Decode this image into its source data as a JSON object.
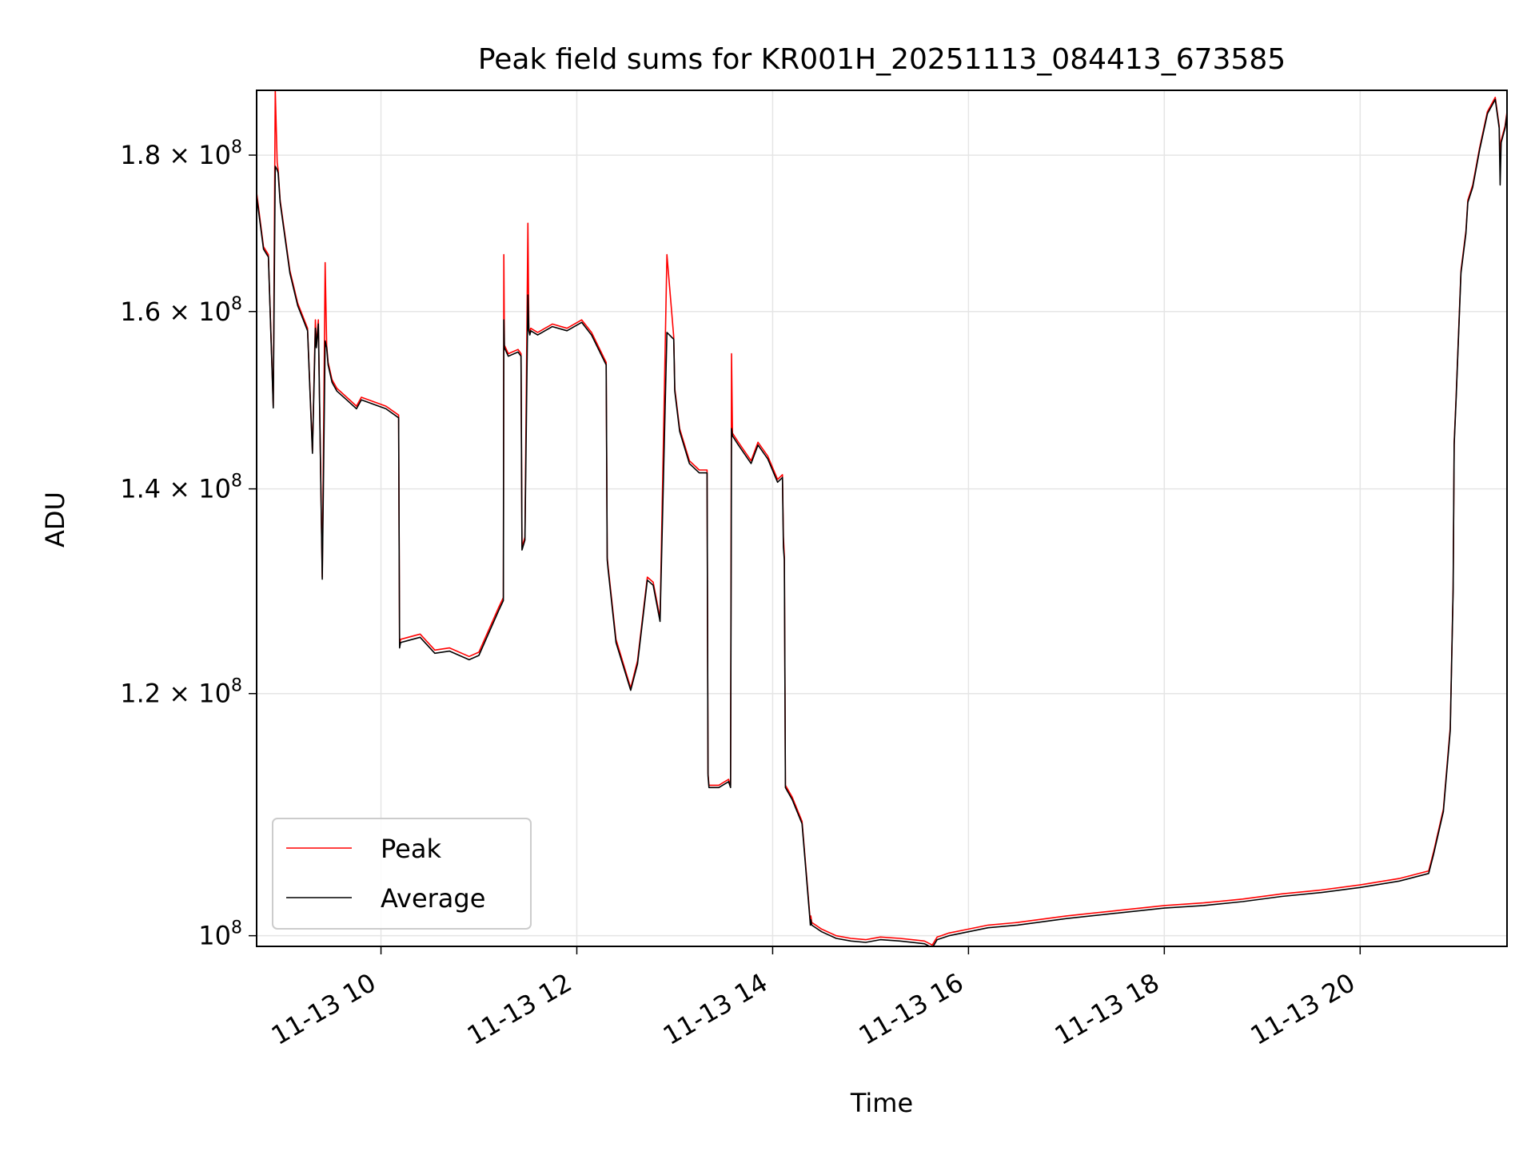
{
  "chart_data": {
    "type": "line",
    "title": "Peak field sums for KR001H_20251113_084413_673585",
    "xlabel": "Time",
    "ylabel": "ADU",
    "yscale": "log",
    "xlim": [
      8.73,
      21.5
    ],
    "ylim": [
      99200000,
      189000000
    ],
    "grid": true,
    "legend_position": "lower-left",
    "x_ticks": [
      {
        "value": 10,
        "label": "11-13 10"
      },
      {
        "value": 12,
        "label": "11-13 12"
      },
      {
        "value": 14,
        "label": "11-13 14"
      },
      {
        "value": 16,
        "label": "11-13 16"
      },
      {
        "value": 18,
        "label": "11-13 18"
      },
      {
        "value": 20,
        "label": "11-13 20"
      }
    ],
    "y_ticks": [
      {
        "value": 100000000,
        "mantissa": "",
        "base": "10",
        "exponent": "8"
      },
      {
        "value": 120000000,
        "mantissa": "1.2",
        "base": "10",
        "exponent": "8"
      },
      {
        "value": 140000000,
        "mantissa": "1.4",
        "base": "10",
        "exponent": "8"
      },
      {
        "value": 160000000,
        "mantissa": "1.6",
        "base": "10",
        "exponent": "8"
      },
      {
        "value": 180000000,
        "mantissa": "1.8",
        "base": "10",
        "exponent": "8"
      }
    ],
    "series": [
      {
        "name": "Peak",
        "color": "#ff0000",
        "x": [
          8.73,
          8.8,
          8.85,
          8.9,
          8.92,
          8.94,
          8.95,
          8.97,
          9.07,
          9.15,
          9.25,
          9.3,
          9.33,
          9.34,
          9.36,
          9.4,
          9.43,
          9.445,
          9.46,
          9.5,
          9.55,
          9.65,
          9.75,
          9.8,
          10.05,
          10.18,
          10.19,
          10.2,
          10.4,
          10.55,
          10.7,
          10.9,
          11.0,
          11.2,
          11.25,
          11.255,
          11.26,
          11.3,
          11.4,
          11.43,
          11.44,
          11.47,
          11.5,
          11.51,
          11.52,
          11.53,
          11.6,
          11.75,
          11.9,
          12.05,
          12.15,
          12.3,
          12.31,
          12.32,
          12.4,
          12.55,
          12.62,
          12.72,
          12.78,
          12.85,
          12.92,
          12.99,
          12.995,
          13.0,
          13.05,
          13.15,
          13.25,
          13.33,
          13.34,
          13.35,
          13.45,
          13.55,
          13.57,
          13.58,
          13.59,
          13.65,
          13.78,
          13.85,
          13.95,
          14.05,
          14.1,
          14.11,
          14.12,
          14.13,
          14.2,
          14.3,
          14.38,
          14.385,
          14.39,
          14.4,
          14.5,
          14.65,
          14.8,
          14.95,
          15.1,
          15.3,
          15.55,
          15.63,
          15.68,
          15.72,
          15.8,
          16.0,
          16.2,
          16.5,
          17.0,
          17.5,
          18.0,
          18.4,
          18.8,
          19.2,
          19.6,
          20.0,
          20.4,
          20.7,
          20.75,
          20.85,
          20.92,
          20.95,
          20.96,
          20.98,
          21.03,
          21.08,
          21.1,
          21.15,
          21.22,
          21.3,
          21.38,
          21.42,
          21.43,
          21.44,
          21.48,
          21.5
        ],
        "values": [
          175000000,
          168000000,
          167000000,
          149000000,
          189000000,
          179000000,
          178000000,
          174000000,
          165000000,
          161000000,
          158000000,
          144000000,
          159000000,
          156000000,
          159000000,
          131000000,
          166000000,
          156000000,
          154000000,
          152000000,
          151000000,
          150000000,
          149000000,
          150000000,
          149000000,
          148000000,
          124500000,
          125000000,
          125500000,
          124000000,
          124200000,
          123400000,
          123800000,
          128000000,
          129000000,
          167000000,
          156000000,
          155000000,
          155500000,
          155000000,
          134000000,
          135000000,
          171000000,
          158000000,
          157500000,
          158000000,
          157500000,
          158500000,
          158000000,
          159000000,
          157500000,
          154000000,
          133000000,
          132000000,
          125000000,
          120500000,
          123000000,
          131000000,
          130500000,
          127000000,
          167000000,
          157000000,
          154000000,
          151000000,
          146500000,
          143000000,
          142000000,
          142000000,
          113000000,
          112000000,
          112000000,
          112500000,
          112000000,
          155000000,
          146000000,
          145000000,
          143000000,
          145000000,
          143500000,
          141000000,
          141500000,
          135000000,
          133000000,
          112000000,
          111000000,
          109000000,
          101500000,
          101000000,
          101500000,
          101000000,
          100500000,
          100000000,
          99800000,
          99700000,
          99900000,
          99800000,
          99600000,
          99300000,
          99900000,
          100000000,
          100200000,
          100500000,
          100800000,
          101000000,
          101500000,
          101900000,
          102300000,
          102500000,
          102800000,
          103200000,
          103500000,
          103900000,
          104400000,
          105000000,
          106500000,
          110000000,
          117000000,
          130000000,
          145000000,
          150000000,
          165000000,
          170000000,
          174000000,
          176000000,
          181000000,
          186000000,
          188000000,
          184000000,
          180000000,
          182000000,
          184000000,
          186000000
        ]
      },
      {
        "name": "Average",
        "color": "#000000",
        "x": [
          8.73,
          8.8,
          8.85,
          8.9,
          8.92,
          8.94,
          8.95,
          8.97,
          9.07,
          9.15,
          9.25,
          9.3,
          9.33,
          9.34,
          9.36,
          9.4,
          9.43,
          9.445,
          9.46,
          9.5,
          9.55,
          9.65,
          9.75,
          9.8,
          10.05,
          10.18,
          10.19,
          10.2,
          10.4,
          10.55,
          10.7,
          10.9,
          11.0,
          11.2,
          11.25,
          11.255,
          11.26,
          11.3,
          11.4,
          11.43,
          11.44,
          11.47,
          11.5,
          11.51,
          11.52,
          11.53,
          11.6,
          11.75,
          11.9,
          12.05,
          12.15,
          12.3,
          12.31,
          12.32,
          12.4,
          12.55,
          12.62,
          12.72,
          12.78,
          12.85,
          12.92,
          12.99,
          12.995,
          13.0,
          13.05,
          13.15,
          13.25,
          13.33,
          13.34,
          13.35,
          13.45,
          13.55,
          13.57,
          13.58,
          13.59,
          13.65,
          13.78,
          13.85,
          13.95,
          14.05,
          14.1,
          14.11,
          14.12,
          14.13,
          14.2,
          14.3,
          14.38,
          14.385,
          14.39,
          14.4,
          14.5,
          14.65,
          14.8,
          14.95,
          15.1,
          15.3,
          15.55,
          15.63,
          15.68,
          15.72,
          15.8,
          16.0,
          16.2,
          16.5,
          17.0,
          17.5,
          18.0,
          18.4,
          18.8,
          19.2,
          19.6,
          20.0,
          20.4,
          20.7,
          20.75,
          20.85,
          20.92,
          20.95,
          20.96,
          20.98,
          21.03,
          21.08,
          21.1,
          21.15,
          21.22,
          21.3,
          21.38,
          21.42,
          21.43,
          21.44,
          21.48,
          21.5
        ],
        "values": [
          174500000,
          167700000,
          166700000,
          148800000,
          178500000,
          178000000,
          177600000,
          173700000,
          164700000,
          160700000,
          157700000,
          143800000,
          158000000,
          155700000,
          158500000,
          130800000,
          156500000,
          155700000,
          153700000,
          151700000,
          150700000,
          149700000,
          148700000,
          149700000,
          148700000,
          147700000,
          124200000,
          124700000,
          125200000,
          123700000,
          123900000,
          123100000,
          123500000,
          127700000,
          128700000,
          159000000,
          155700000,
          154700000,
          155200000,
          154700000,
          133700000,
          134700000,
          162000000,
          157700000,
          157200000,
          157700000,
          157200000,
          158200000,
          157700000,
          158700000,
          157200000,
          153700000,
          132700000,
          131700000,
          124700000,
          120300000,
          122700000,
          130700000,
          130200000,
          126700000,
          157500000,
          156700000,
          153700000,
          150700000,
          146200000,
          142700000,
          141700000,
          141700000,
          112800000,
          111800000,
          111800000,
          112300000,
          111800000,
          146500000,
          145700000,
          144700000,
          142700000,
          144700000,
          143200000,
          140700000,
          141200000,
          134000000,
          132700000,
          111800000,
          110800000,
          108800000,
          101300000,
          100800000,
          101200000,
          100800000,
          100300000,
          99800000,
          99600000,
          99500000,
          99700000,
          99600000,
          99400000,
          99100000,
          99700000,
          99800000,
          100000000,
          100300000,
          100600000,
          100800000,
          101300000,
          101700000,
          102100000,
          102300000,
          102600000,
          103000000,
          103300000,
          103700000,
          104200000,
          104800000,
          106300000,
          109800000,
          116700000,
          129700000,
          144700000,
          149700000,
          164700000,
          169700000,
          173700000,
          175700000,
          180700000,
          185700000,
          187700000,
          183700000,
          176000000,
          181700000,
          183700000,
          185700000
        ]
      }
    ]
  }
}
